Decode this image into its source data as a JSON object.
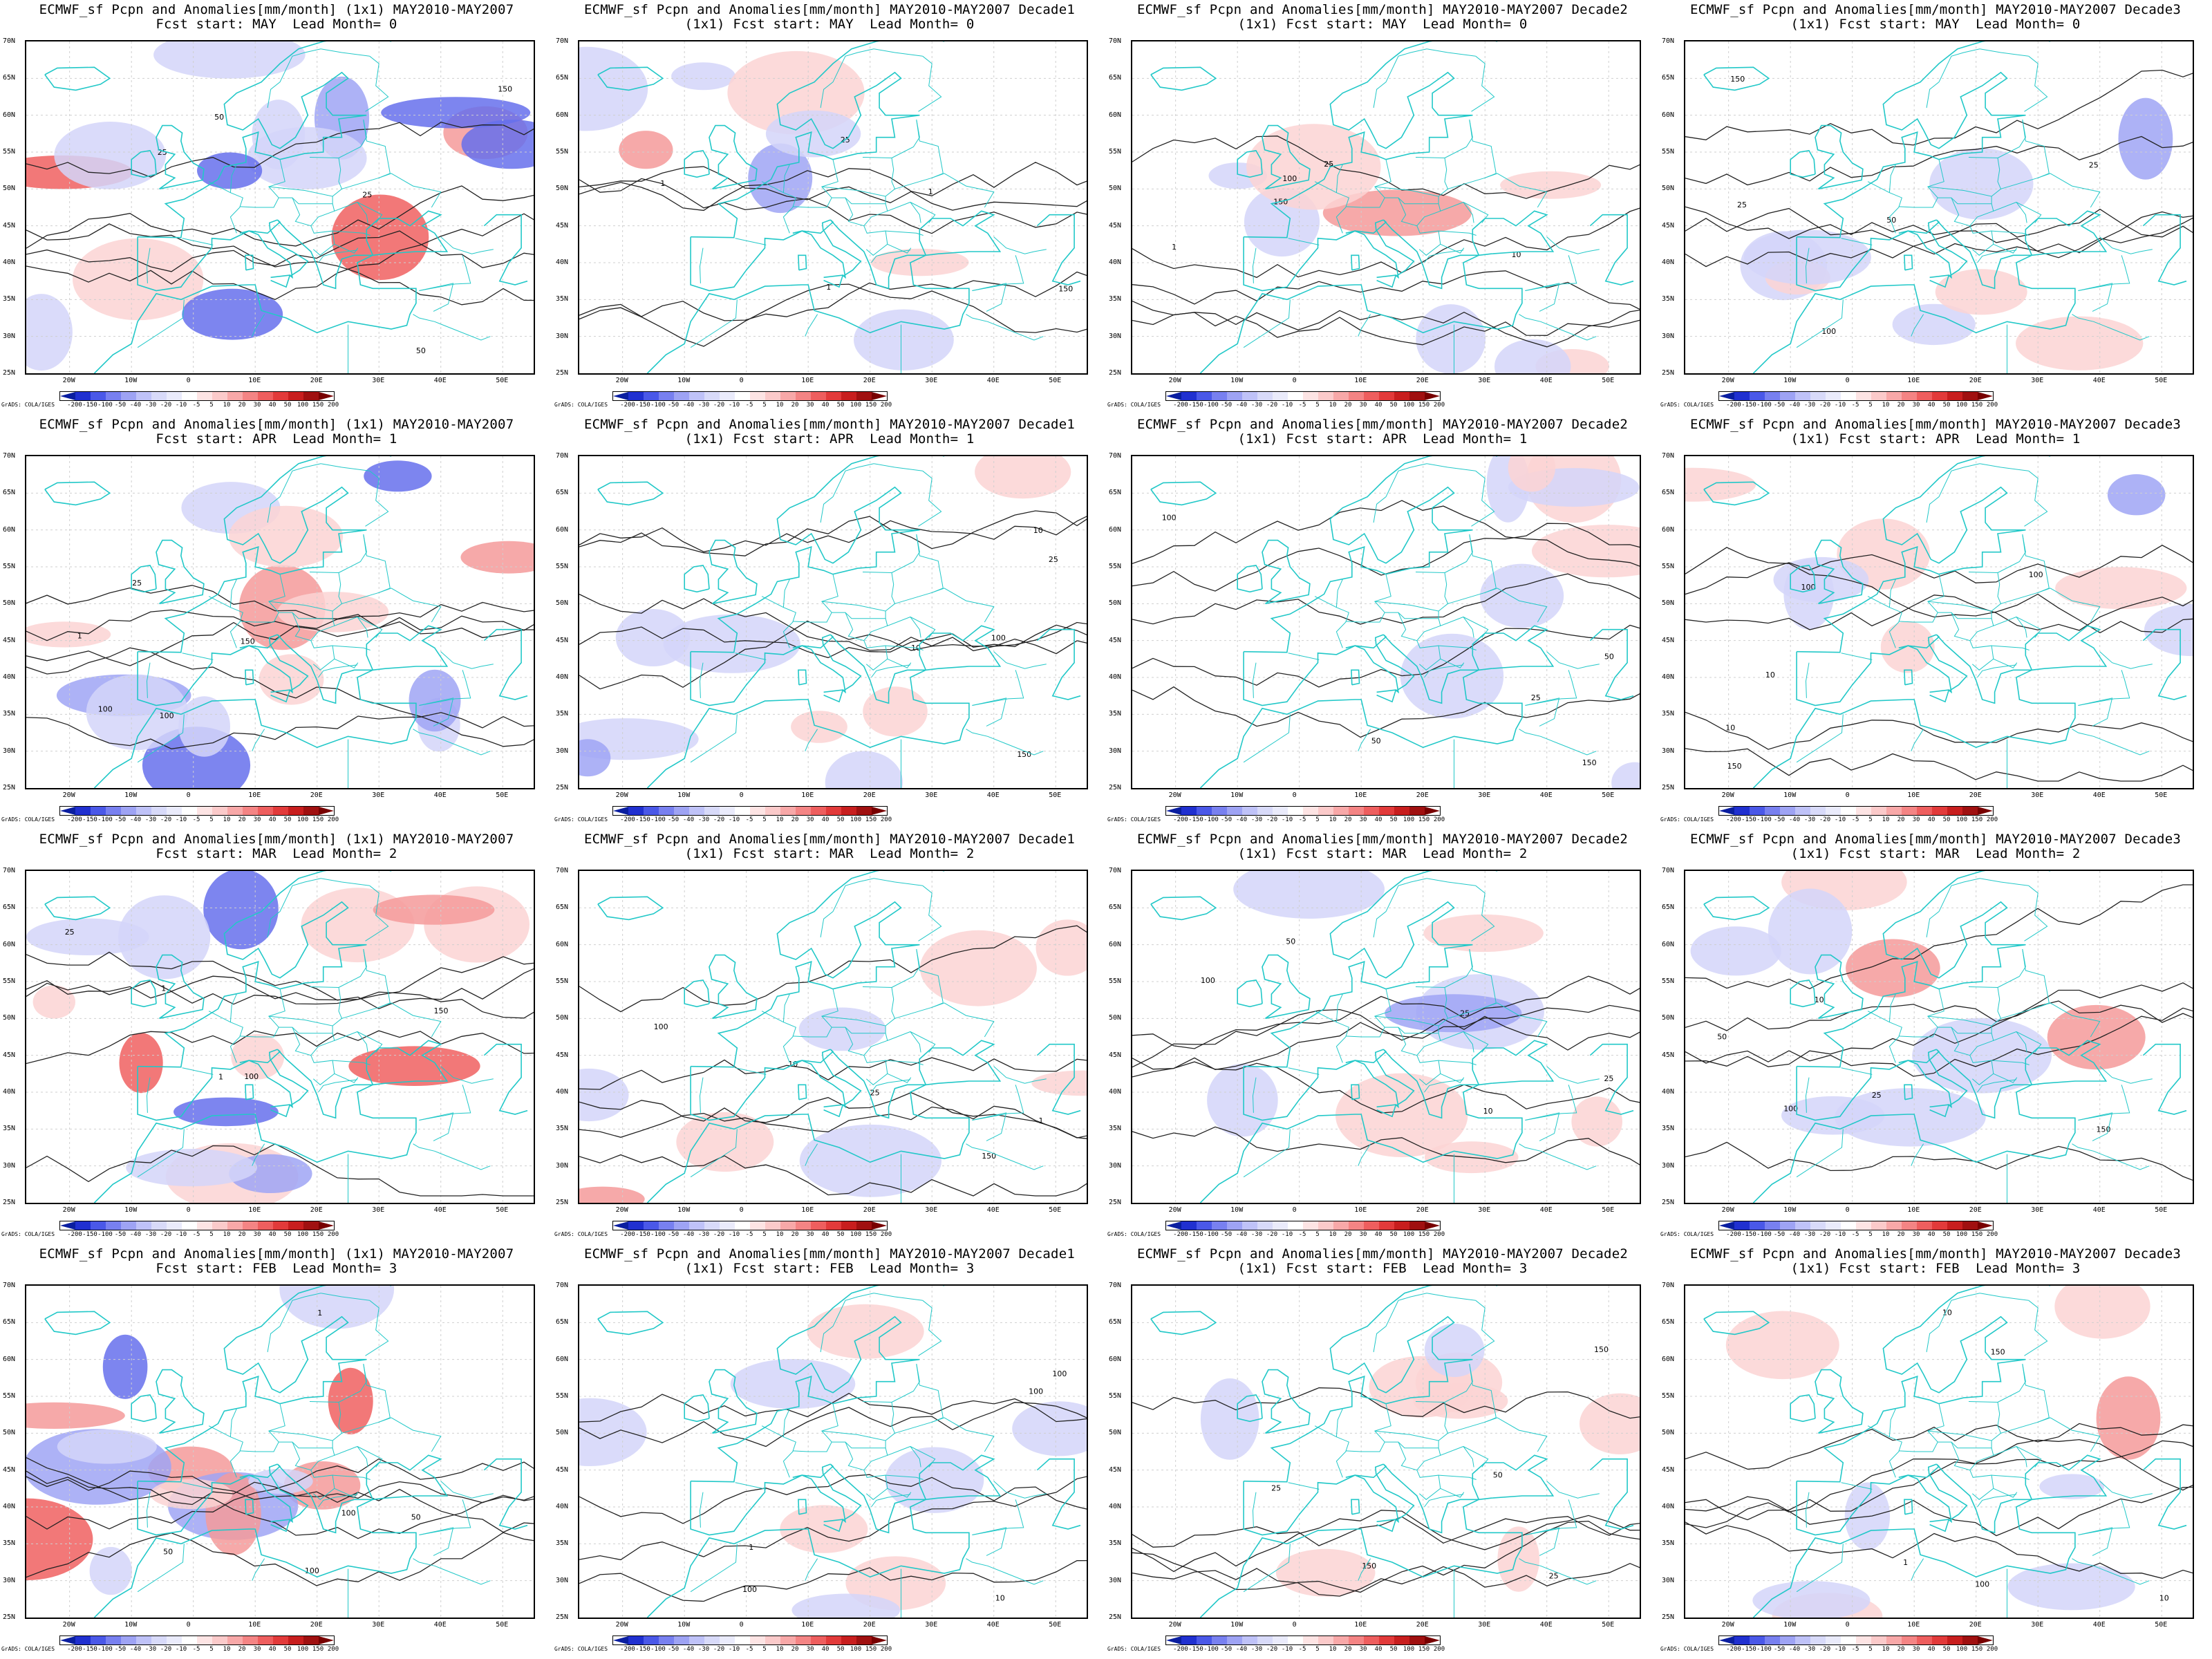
{
  "title_main": "ECMWF_sf Pcpn and Anomalies[mm/month] (1x1) MAY2010-MAY2007",
  "title_decade_prefix": "ECMWF_sf Pcpn and Anomalies[mm/month] MAY2010-MAY2007",
  "decade_tags": [
    "",
    "Decade1",
    "Decade2",
    "Decade3"
  ],
  "rows": [
    {
      "fcst_line": "Fcst start: MAY  Lead Month= 0",
      "fcst_line_1x1": "(1x1) Fcst start: MAY  Lead Month= 0"
    },
    {
      "fcst_line": "Fcst start: APR  Lead Month= 1",
      "fcst_line_1x1": "(1x1) Fcst start: APR  Lead Month= 1"
    },
    {
      "fcst_line": "Fcst start: MAR  Lead Month= 2",
      "fcst_line_1x1": "(1x1) Fcst start: MAR  Lead Month= 2"
    },
    {
      "fcst_line": "Fcst start: FEB  Lead Month= 3",
      "fcst_line_1x1": "(1x1) Fcst start: FEB  Lead Month= 3"
    }
  ],
  "lat_labels": [
    "70N",
    "65N",
    "60N",
    "55N",
    "50N",
    "45N",
    "40N",
    "35N",
    "30N",
    "25N"
  ],
  "lon_labels": [
    "20W",
    "10W",
    "0",
    "10E",
    "20E",
    "30E",
    "40E",
    "50E"
  ],
  "colorbar_labels": [
    "-200",
    "-150",
    "-100",
    "-50",
    "-40",
    "-30",
    "-20",
    "-10",
    "-5",
    "5",
    "10",
    "20",
    "30",
    "40",
    "50",
    "100",
    "150",
    "200"
  ],
  "colorbar_colors": [
    "#0a1ea0",
    "#2030d0",
    "#4a58e8",
    "#7880f0",
    "#9ea3f4",
    "#bfc2f8",
    "#d8daf9",
    "#eaebfb",
    "#ffffff",
    "#fde4e4",
    "#fbcaca",
    "#f8a8a8",
    "#f48484",
    "#ee5e5e",
    "#e23a3a",
    "#c81e1e",
    "#a01010",
    "#780000"
  ],
  "credit": "GrADS: COLA/IGES",
  "contour_labels": [
    "10",
    "25",
    "50",
    "100",
    "150",
    "1"
  ],
  "coast_color": "#22c8c8",
  "contour_color": "#222222"
}
